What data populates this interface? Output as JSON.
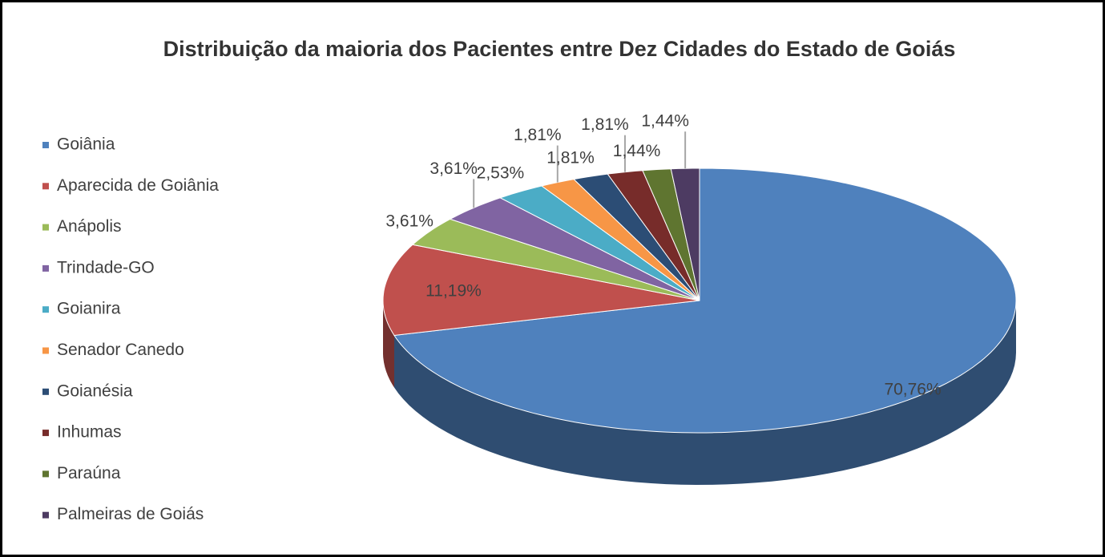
{
  "chart_data": {
    "type": "pie",
    "title": "Distribuição da maioria dos Pacientes entre  Dez Cidades do Estado de Goiás",
    "categories": [
      "Goiânia",
      "Aparecida de Goiânia",
      "Anápolis",
      "Trindade-GO",
      "Goianira",
      "Senador Canedo",
      "Goianésia",
      "Inhumas",
      "Paraúna",
      "Palmeiras de Goiás"
    ],
    "values": [
      70.76,
      11.19,
      3.61,
      3.61,
      2.53,
      1.81,
      1.81,
      1.81,
      1.44,
      1.44
    ],
    "value_labels": [
      "70,76%",
      "11,19%",
      "3,61%",
      "3,61%",
      "2,53%",
      "1,81%",
      "1,81%",
      "1,81%",
      "1,44%",
      "1,44%"
    ],
    "colors": [
      "#4f81bd",
      "#c0504d",
      "#9bbb59",
      "#8064a2",
      "#4bacc6",
      "#f79646",
      "#2c4d75",
      "#772c2a",
      "#5f7530",
      "#4d3b62"
    ],
    "legend": "left"
  }
}
